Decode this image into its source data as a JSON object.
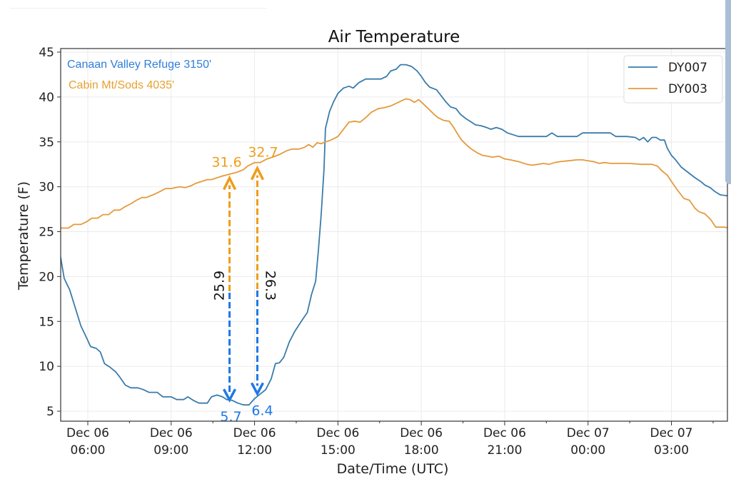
{
  "chart_data": {
    "type": "line",
    "title": "Air Temperature",
    "xlabel": "Date/Time (UTC)",
    "ylabel": "Temperature (F)",
    "x_units": "hours since Dec 06 00:00 UTC",
    "xlim": [
      5.02,
      29.03
    ],
    "ylim": [
      3.7,
      45.3
    ],
    "grid": true,
    "x_ticks": [
      {
        "x": 6,
        "line1": "Dec 06",
        "line2": "06:00"
      },
      {
        "x": 9,
        "line1": "Dec 06",
        "line2": "09:00"
      },
      {
        "x": 12,
        "line1": "Dec 06",
        "line2": "12:00"
      },
      {
        "x": 15,
        "line1": "Dec 06",
        "line2": "15:00"
      },
      {
        "x": 18,
        "line1": "Dec 06",
        "line2": "18:00"
      },
      {
        "x": 21,
        "line1": "Dec 06",
        "line2": "21:00"
      },
      {
        "x": 24,
        "line1": "Dec 07",
        "line2": "00:00"
      },
      {
        "x": 27,
        "line1": "Dec 07",
        "line2": "03:00"
      }
    ],
    "x_minor_ticks": [
      7.5,
      10.5,
      13.5,
      16.5,
      19.5,
      22.5,
      25.5,
      28.5
    ],
    "y_ticks": [
      5,
      10,
      15,
      20,
      25,
      30,
      35,
      40,
      45
    ],
    "legend": {
      "position": "top-right",
      "entries": [
        "DY007",
        "DY003"
      ]
    },
    "series": [
      {
        "name": "DY007",
        "color": "#3a7cab",
        "points": [
          [
            5.02,
            22.2
          ],
          [
            5.15,
            19.8
          ],
          [
            5.35,
            18.5
          ],
          [
            5.55,
            16.5
          ],
          [
            5.75,
            14.5
          ],
          [
            5.95,
            13.2
          ],
          [
            6.1,
            12.2
          ],
          [
            6.3,
            12.0
          ],
          [
            6.45,
            11.6
          ],
          [
            6.6,
            10.3
          ],
          [
            6.8,
            9.9
          ],
          [
            7.0,
            9.4
          ],
          [
            7.15,
            8.8
          ],
          [
            7.35,
            7.9
          ],
          [
            7.55,
            7.6
          ],
          [
            7.8,
            7.6
          ],
          [
            8.0,
            7.4
          ],
          [
            8.2,
            7.1
          ],
          [
            8.5,
            7.1
          ],
          [
            8.7,
            6.6
          ],
          [
            9.0,
            6.6
          ],
          [
            9.2,
            6.3
          ],
          [
            9.45,
            6.3
          ],
          [
            9.6,
            6.6
          ],
          [
            9.8,
            6.2
          ],
          [
            10.0,
            5.9
          ],
          [
            10.3,
            5.9
          ],
          [
            10.45,
            6.6
          ],
          [
            10.65,
            6.8
          ],
          [
            10.85,
            6.6
          ],
          [
            11.0,
            6.3
          ],
          [
            11.2,
            6.2
          ],
          [
            11.4,
            5.9
          ],
          [
            11.6,
            5.7
          ],
          [
            11.8,
            5.7
          ],
          [
            12.0,
            6.4
          ],
          [
            12.2,
            6.9
          ],
          [
            12.4,
            7.4
          ],
          [
            12.6,
            8.6
          ],
          [
            12.75,
            10.3
          ],
          [
            12.9,
            10.4
          ],
          [
            13.05,
            11.0
          ],
          [
            13.25,
            12.7
          ],
          [
            13.45,
            13.9
          ],
          [
            13.7,
            15.1
          ],
          [
            13.9,
            16.0
          ],
          [
            14.05,
            18.0
          ],
          [
            14.2,
            19.5
          ],
          [
            14.3,
            23.0
          ],
          [
            14.4,
            27.0
          ],
          [
            14.5,
            32.0
          ],
          [
            14.55,
            36.5
          ],
          [
            14.7,
            38.4
          ],
          [
            14.85,
            39.5
          ],
          [
            15.0,
            40.4
          ],
          [
            15.2,
            41.0
          ],
          [
            15.4,
            41.2
          ],
          [
            15.55,
            41.0
          ],
          [
            15.75,
            41.6
          ],
          [
            16.0,
            42.0
          ],
          [
            16.3,
            42.0
          ],
          [
            16.55,
            42.0
          ],
          [
            16.75,
            42.3
          ],
          [
            16.9,
            42.9
          ],
          [
            17.1,
            43.1
          ],
          [
            17.25,
            43.6
          ],
          [
            17.45,
            43.6
          ],
          [
            17.65,
            43.4
          ],
          [
            17.85,
            42.9
          ],
          [
            18.0,
            42.3
          ],
          [
            18.15,
            41.6
          ],
          [
            18.3,
            41.1
          ],
          [
            18.55,
            40.8
          ],
          [
            18.7,
            40.2
          ],
          [
            18.9,
            39.4
          ],
          [
            19.05,
            38.9
          ],
          [
            19.25,
            38.7
          ],
          [
            19.4,
            38.1
          ],
          [
            19.6,
            37.6
          ],
          [
            19.75,
            37.3
          ],
          [
            19.95,
            36.9
          ],
          [
            20.15,
            36.8
          ],
          [
            20.35,
            36.6
          ],
          [
            20.5,
            36.4
          ],
          [
            20.7,
            36.6
          ],
          [
            20.9,
            36.4
          ],
          [
            21.1,
            36.0
          ],
          [
            21.3,
            35.8
          ],
          [
            21.5,
            35.6
          ],
          [
            22.0,
            35.6
          ],
          [
            22.5,
            35.6
          ],
          [
            22.7,
            36.0
          ],
          [
            22.9,
            35.6
          ],
          [
            23.2,
            35.6
          ],
          [
            23.6,
            35.6
          ],
          [
            23.8,
            36.0
          ],
          [
            24.0,
            36.0
          ],
          [
            24.4,
            36.0
          ],
          [
            24.8,
            36.0
          ],
          [
            25.0,
            35.6
          ],
          [
            25.4,
            35.6
          ],
          [
            25.7,
            35.5
          ],
          [
            25.85,
            35.2
          ],
          [
            26.0,
            35.5
          ],
          [
            26.15,
            35.0
          ],
          [
            26.3,
            35.5
          ],
          [
            26.45,
            35.5
          ],
          [
            26.6,
            35.2
          ],
          [
            26.75,
            35.2
          ],
          [
            26.85,
            34.3
          ],
          [
            27.0,
            33.5
          ],
          [
            27.15,
            33.0
          ],
          [
            27.35,
            32.2
          ],
          [
            27.6,
            31.6
          ],
          [
            27.85,
            31.0
          ],
          [
            28.05,
            30.6
          ],
          [
            28.2,
            30.2
          ],
          [
            28.4,
            29.9
          ],
          [
            28.55,
            29.5
          ],
          [
            28.75,
            29.1
          ],
          [
            29.0,
            29.0
          ],
          [
            29.2,
            28.9
          ],
          [
            29.5,
            28.9
          ],
          [
            29.7,
            28.4
          ],
          [
            29.9,
            28.4
          ],
          [
            30.0,
            28.0
          ]
        ]
      },
      {
        "name": "DY003",
        "color": "#e59a3c",
        "points": [
          [
            5.02,
            25.4
          ],
          [
            5.3,
            25.4
          ],
          [
            5.5,
            25.8
          ],
          [
            5.75,
            25.8
          ],
          [
            5.95,
            26.1
          ],
          [
            6.15,
            26.5
          ],
          [
            6.35,
            26.5
          ],
          [
            6.55,
            26.9
          ],
          [
            6.75,
            26.9
          ],
          [
            6.95,
            27.4
          ],
          [
            7.15,
            27.4
          ],
          [
            7.35,
            27.8
          ],
          [
            7.55,
            28.1
          ],
          [
            7.75,
            28.5
          ],
          [
            7.95,
            28.8
          ],
          [
            8.1,
            28.8
          ],
          [
            8.35,
            29.1
          ],
          [
            8.55,
            29.4
          ],
          [
            8.8,
            29.8
          ],
          [
            9.0,
            29.8
          ],
          [
            9.3,
            30.0
          ],
          [
            9.5,
            29.9
          ],
          [
            9.7,
            30.1
          ],
          [
            9.9,
            30.4
          ],
          [
            10.1,
            30.6
          ],
          [
            10.3,
            30.8
          ],
          [
            10.45,
            30.8
          ],
          [
            10.65,
            31.0
          ],
          [
            10.85,
            31.2
          ],
          [
            11.1,
            31.4
          ],
          [
            11.35,
            31.6
          ],
          [
            11.6,
            31.9
          ],
          [
            11.75,
            32.3
          ],
          [
            12.0,
            32.7
          ],
          [
            12.2,
            32.7
          ],
          [
            12.45,
            33.1
          ],
          [
            12.65,
            33.3
          ],
          [
            12.9,
            33.6
          ],
          [
            13.15,
            34.0
          ],
          [
            13.35,
            34.2
          ],
          [
            13.6,
            34.2
          ],
          [
            13.8,
            34.4
          ],
          [
            13.95,
            34.7
          ],
          [
            14.1,
            34.4
          ],
          [
            14.25,
            34.9
          ],
          [
            14.4,
            34.8
          ],
          [
            14.55,
            35.0
          ],
          [
            14.75,
            35.2
          ],
          [
            15.0,
            35.6
          ],
          [
            15.2,
            36.4
          ],
          [
            15.4,
            37.2
          ],
          [
            15.6,
            37.3
          ],
          [
            15.8,
            37.2
          ],
          [
            16.0,
            37.7
          ],
          [
            16.2,
            38.3
          ],
          [
            16.45,
            38.7
          ],
          [
            16.65,
            38.8
          ],
          [
            16.9,
            39.0
          ],
          [
            17.1,
            39.3
          ],
          [
            17.3,
            39.6
          ],
          [
            17.45,
            39.8
          ],
          [
            17.6,
            39.7
          ],
          [
            17.75,
            39.4
          ],
          [
            17.9,
            39.7
          ],
          [
            18.05,
            39.3
          ],
          [
            18.25,
            38.7
          ],
          [
            18.45,
            38.1
          ],
          [
            18.6,
            37.7
          ],
          [
            18.8,
            37.4
          ],
          [
            19.0,
            37.3
          ],
          [
            19.15,
            36.7
          ],
          [
            19.3,
            35.9
          ],
          [
            19.45,
            35.2
          ],
          [
            19.65,
            34.6
          ],
          [
            19.8,
            34.2
          ],
          [
            20.0,
            33.8
          ],
          [
            20.2,
            33.5
          ],
          [
            20.4,
            33.4
          ],
          [
            20.55,
            33.3
          ],
          [
            20.8,
            33.4
          ],
          [
            21.0,
            33.1
          ],
          [
            21.2,
            33.0
          ],
          [
            21.5,
            32.8
          ],
          [
            21.8,
            32.5
          ],
          [
            22.0,
            32.4
          ],
          [
            22.2,
            32.5
          ],
          [
            22.4,
            32.6
          ],
          [
            22.6,
            32.5
          ],
          [
            22.8,
            32.7
          ],
          [
            23.0,
            32.8
          ],
          [
            23.3,
            32.9
          ],
          [
            23.6,
            33.0
          ],
          [
            23.8,
            33.0
          ],
          [
            24.0,
            32.9
          ],
          [
            24.2,
            32.8
          ],
          [
            24.4,
            32.6
          ],
          [
            24.6,
            32.7
          ],
          [
            24.8,
            32.6
          ],
          [
            25.0,
            32.6
          ],
          [
            25.5,
            32.6
          ],
          [
            25.9,
            32.5
          ],
          [
            26.3,
            32.5
          ],
          [
            26.5,
            32.3
          ],
          [
            26.65,
            31.8
          ],
          [
            26.85,
            31.3
          ],
          [
            27.0,
            30.6
          ],
          [
            27.2,
            29.7
          ],
          [
            27.45,
            28.7
          ],
          [
            27.65,
            28.5
          ],
          [
            27.85,
            27.6
          ],
          [
            28.0,
            27.2
          ],
          [
            28.2,
            27.0
          ],
          [
            28.4,
            26.4
          ],
          [
            28.6,
            25.5
          ],
          [
            28.9,
            25.5
          ],
          [
            29.1,
            25.4
          ],
          [
            29.3,
            25.1
          ],
          [
            29.5,
            24.8
          ],
          [
            30.0,
            24.8
          ]
        ]
      }
    ],
    "site_labels": [
      {
        "text": "Canaan Valley Refuge 3150'",
        "color": "#2f7fd8",
        "series": "DY007"
      },
      {
        "text": "Cabin Mt/Sods 4035'",
        "color": "#e8a030",
        "series": "DY003"
      }
    ],
    "annotations": [
      {
        "x": 11.1,
        "low_value": 5.7,
        "low_label": "5.7",
        "high_value": 31.6,
        "high_label": "31.6",
        "difference_label": "25.9",
        "low_color": "#1e78e6",
        "high_color": "#ee9d1a"
      },
      {
        "x": 12.1,
        "low_value": 6.4,
        "low_label": "6.4",
        "high_value": 32.7,
        "high_label": "32.7",
        "difference_label": "26.3",
        "low_color": "#1e78e6",
        "high_color": "#ee9d1a"
      }
    ]
  }
}
